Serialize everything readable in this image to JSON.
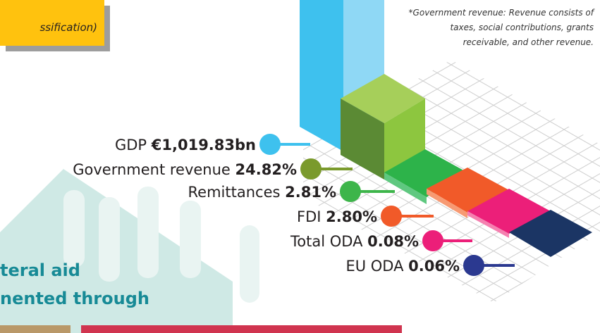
{
  "box_text": "ssification)",
  "note": [
    "*Government revenue:  Revenue consists of",
    "taxes, social contributions, grants",
    "receivable, and other revenue."
  ],
  "items": [
    {
      "name": "GDP",
      "value": "€1,019.83bn",
      "color": "#3ec1ee"
    },
    {
      "name": "Government revenue",
      "value": "24.82%",
      "color": "#7a9a2c"
    },
    {
      "name": "Remittances",
      "value": "2.81%",
      "color": "#3db54a"
    },
    {
      "name": "FDI",
      "value": "2.80%",
      "color": "#f15a29"
    },
    {
      "name": "Total ODA",
      "value": "0.08%",
      "color": "#ec1f79"
    },
    {
      "name": "EU ODA",
      "value": "0.06%",
      "color": "#2b3990"
    }
  ],
  "heading": [
    "teral aid",
    "nented through"
  ]
}
